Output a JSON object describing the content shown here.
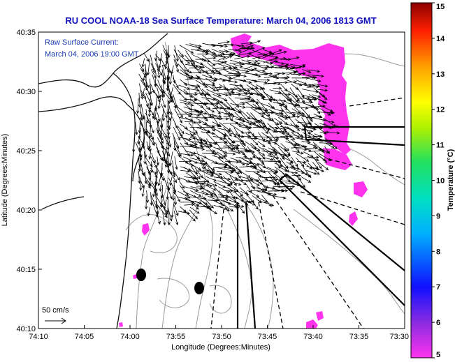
{
  "chart_data": {
    "type": "map",
    "title": "RU COOL  NOAA-18  Sea Surface Temperature:  March 04, 2006 1813 GMT",
    "annotation_lines": [
      "Raw Surface Current:",
      "March 04, 2006 19:00 GMT"
    ],
    "scale_label": "50 cm/s",
    "xlabel": "Longitude (Degrees:Minutes)",
    "ylabel": "Latitude (Degrees:Minutes)",
    "x_ticks": [
      "74:10",
      "74:05",
      "74:00",
      "73:55",
      "73:50",
      "73:45",
      "73:40",
      "73:35",
      "73:30"
    ],
    "y_ticks": [
      "40:10",
      "40:15",
      "40:20",
      "40:25",
      "40:30",
      "40:35"
    ],
    "xlim_deg": [
      -74.1667,
      -73.5
    ],
    "ylim_deg": [
      40.1667,
      40.5833
    ],
    "colorbar": {
      "label": "Temperature (°C)",
      "range": [
        5,
        15
      ],
      "ticks": [
        "5",
        "6",
        "7",
        "8",
        "9",
        "10",
        "11",
        "12",
        "13",
        "14",
        "15"
      ]
    },
    "sst_patch_color": "#ff33ee",
    "land_color": "#ffffff",
    "coastline_color": "#111111",
    "contour_color": "#9a9a9a",
    "arrow_color": "#000000",
    "title_color": "#1010c0"
  }
}
